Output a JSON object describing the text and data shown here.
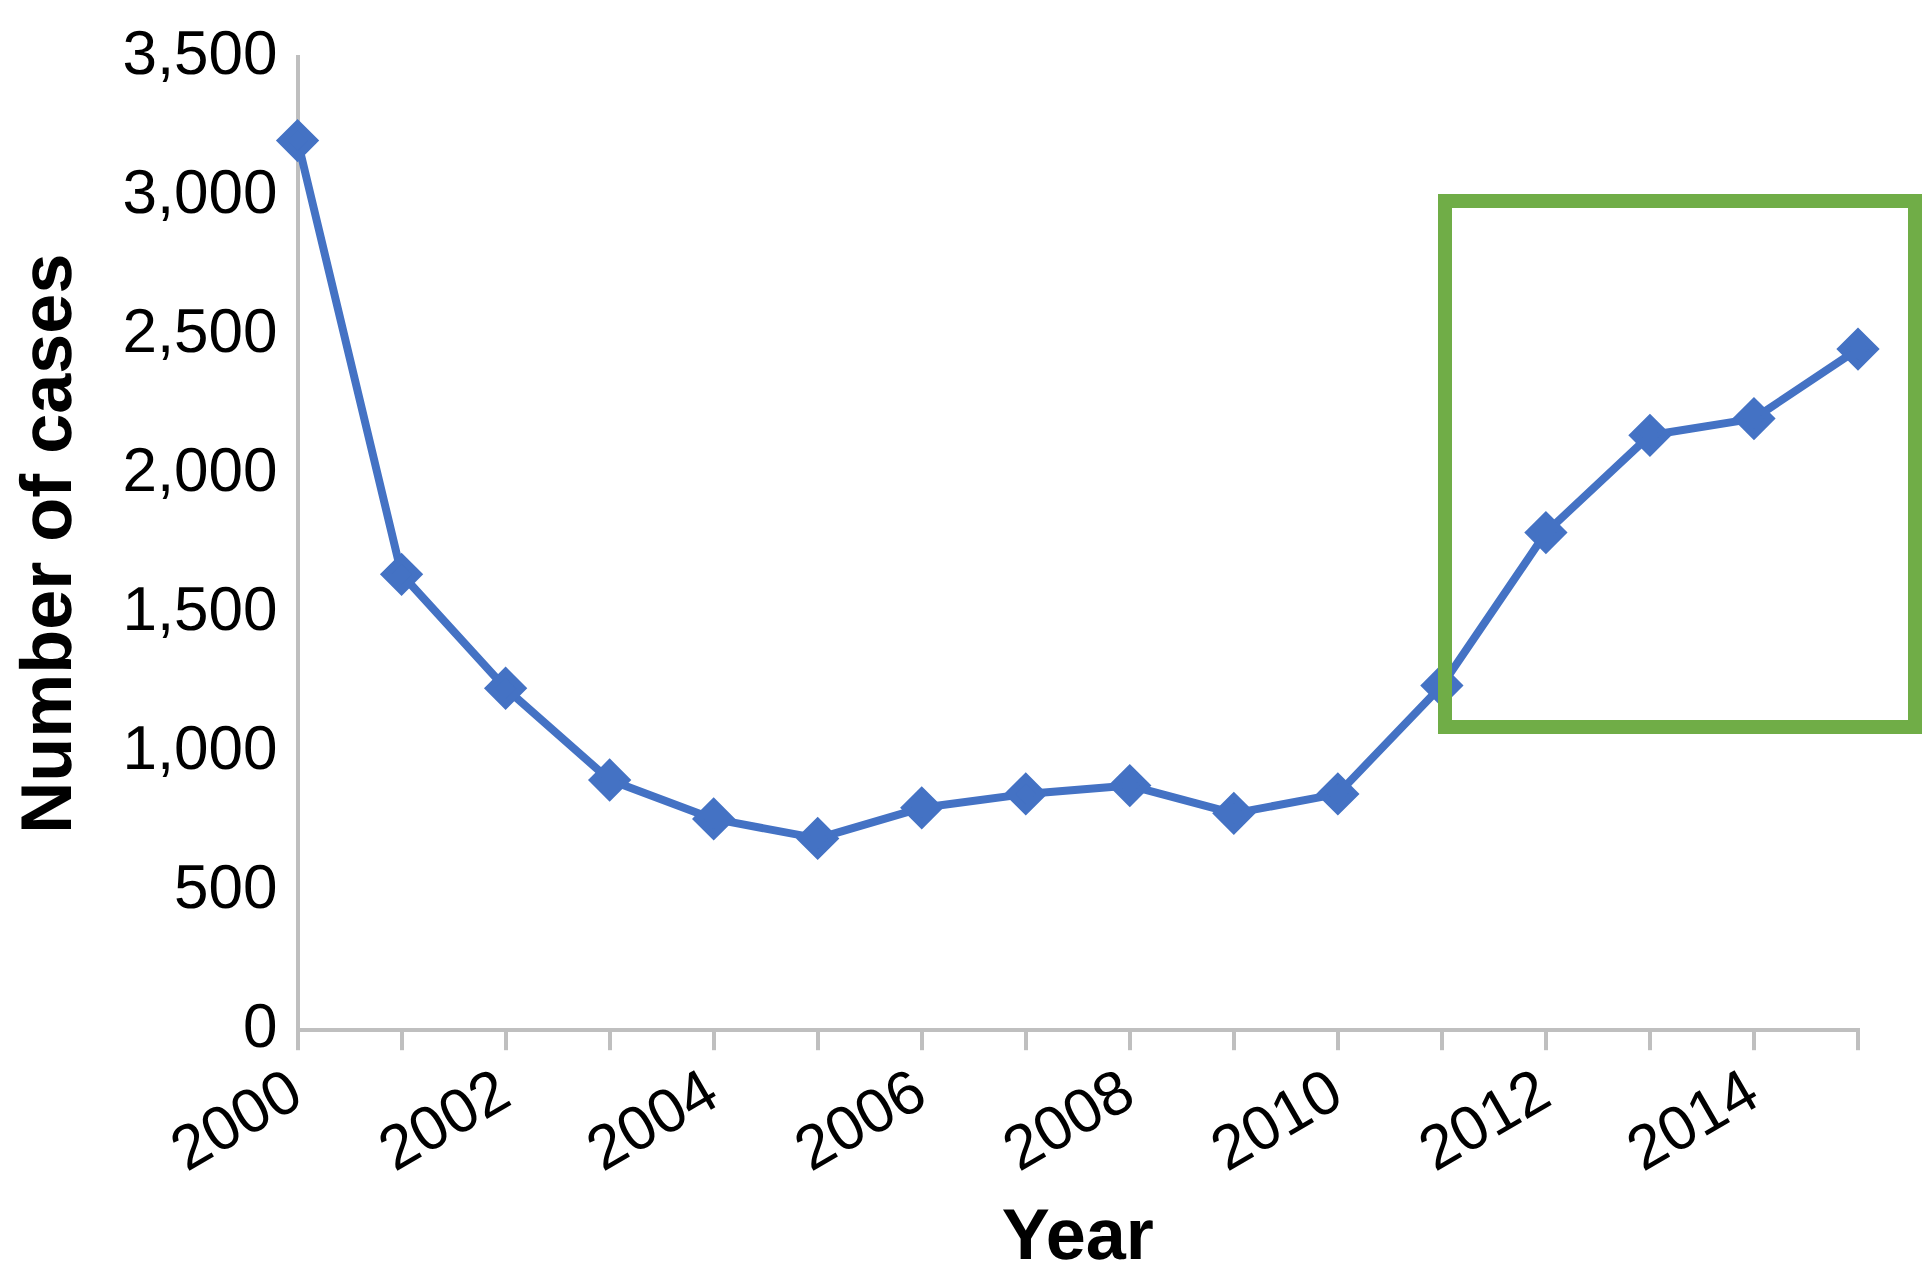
{
  "chart_data": {
    "type": "line",
    "xlabel": "Year",
    "ylabel": "Number of cases",
    "categories": [
      "2000",
      null,
      "2002",
      null,
      "2004",
      null,
      "2006",
      null,
      "2008",
      null,
      "2010",
      null,
      "2012",
      null,
      "2014",
      null
    ],
    "series": [
      {
        "color": "#4472c4",
        "values": [
          3200,
          1640,
          1230,
          900,
          760,
          690,
          800,
          850,
          880,
          780,
          850,
          1240,
          1790,
          2140,
          2200,
          2450
        ]
      }
    ],
    "ylim": [
      0,
      3500
    ],
    "yticks": [
      0,
      500,
      {
        "value": 1000,
        "label": "1,000"
      },
      {
        "value": 1500,
        "label": "1,500"
      },
      {
        "value": 2000,
        "label": "2,000"
      },
      {
        "value": 2500,
        "label": "2,500"
      },
      {
        "value": 3000,
        "label": "3,000"
      },
      {
        "value": 3500,
        "label": "3,500"
      }
    ],
    "grid": false,
    "legend": false,
    "marker": "diamond",
    "line_style": "solid"
  }
}
